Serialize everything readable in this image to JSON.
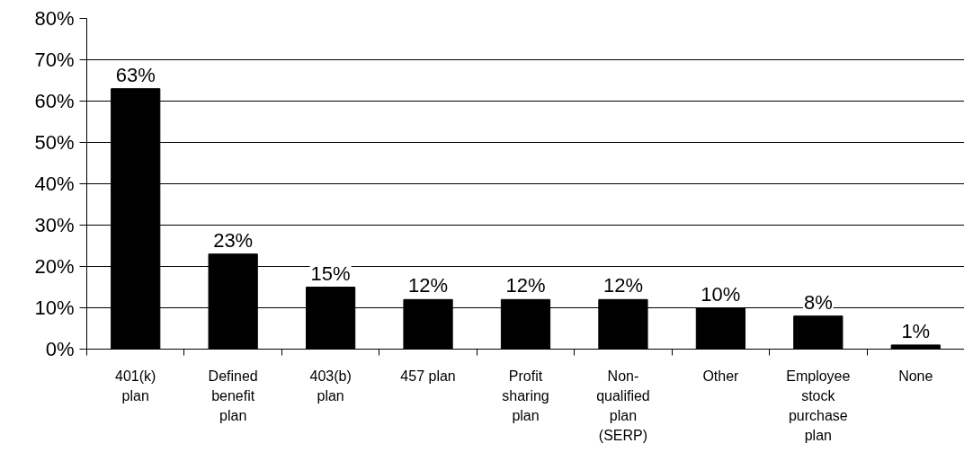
{
  "chart_data": {
    "type": "bar",
    "categories": [
      "401(k)\nplan",
      "Defined\nbenefit\nplan",
      "403(b)\nplan",
      "457 plan",
      "Profit\nsharing\nplan",
      "Non-\nqualified\nplan\n(SERP)",
      "Other",
      "Employee\nstock\npurchase\nplan",
      "None"
    ],
    "values": [
      63,
      23,
      15,
      12,
      12,
      12,
      10,
      8,
      1
    ],
    "value_labels": [
      "63%",
      "23%",
      "15%",
      "12%",
      "12%",
      "12%",
      "10%",
      "8%",
      "1%"
    ],
    "color": "#000000",
    "ylim": [
      0,
      80
    ],
    "yticks": [
      {
        "value": 0,
        "label": "0%"
      },
      {
        "value": 10,
        "label": "10%"
      },
      {
        "value": 20,
        "label": "20%"
      },
      {
        "value": 30,
        "label": "30%"
      },
      {
        "value": 40,
        "label": "40%"
      },
      {
        "value": 50,
        "label": "50%"
      },
      {
        "value": 60,
        "label": "60%"
      },
      {
        "value": 70,
        "label": "70%"
      },
      {
        "value": 80,
        "label": "80%"
      }
    ],
    "grid": "y"
  }
}
